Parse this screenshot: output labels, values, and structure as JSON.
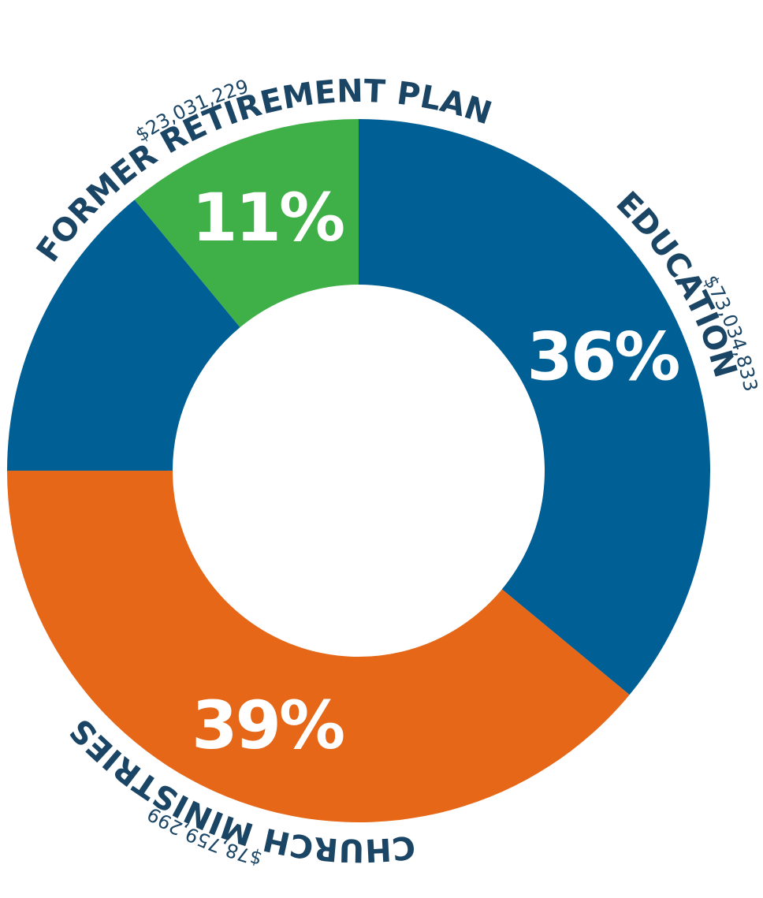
{
  "chart_data": {
    "type": "donut",
    "categories": [
      "EDUCATION",
      "CHURCH MINISTRIES",
      null,
      "FORMER RETIREMENT PLAN"
    ],
    "values": [
      36,
      39,
      14,
      11
    ],
    "value_labels": [
      "36%",
      "39%",
      null,
      "11%"
    ],
    "amount_labels": [
      "$73,034,833",
      "$78,759,299",
      null,
      "$23,031,229"
    ],
    "colors": [
      "#005f94",
      "#e56717",
      "#005f94",
      "#3faf47"
    ]
  }
}
